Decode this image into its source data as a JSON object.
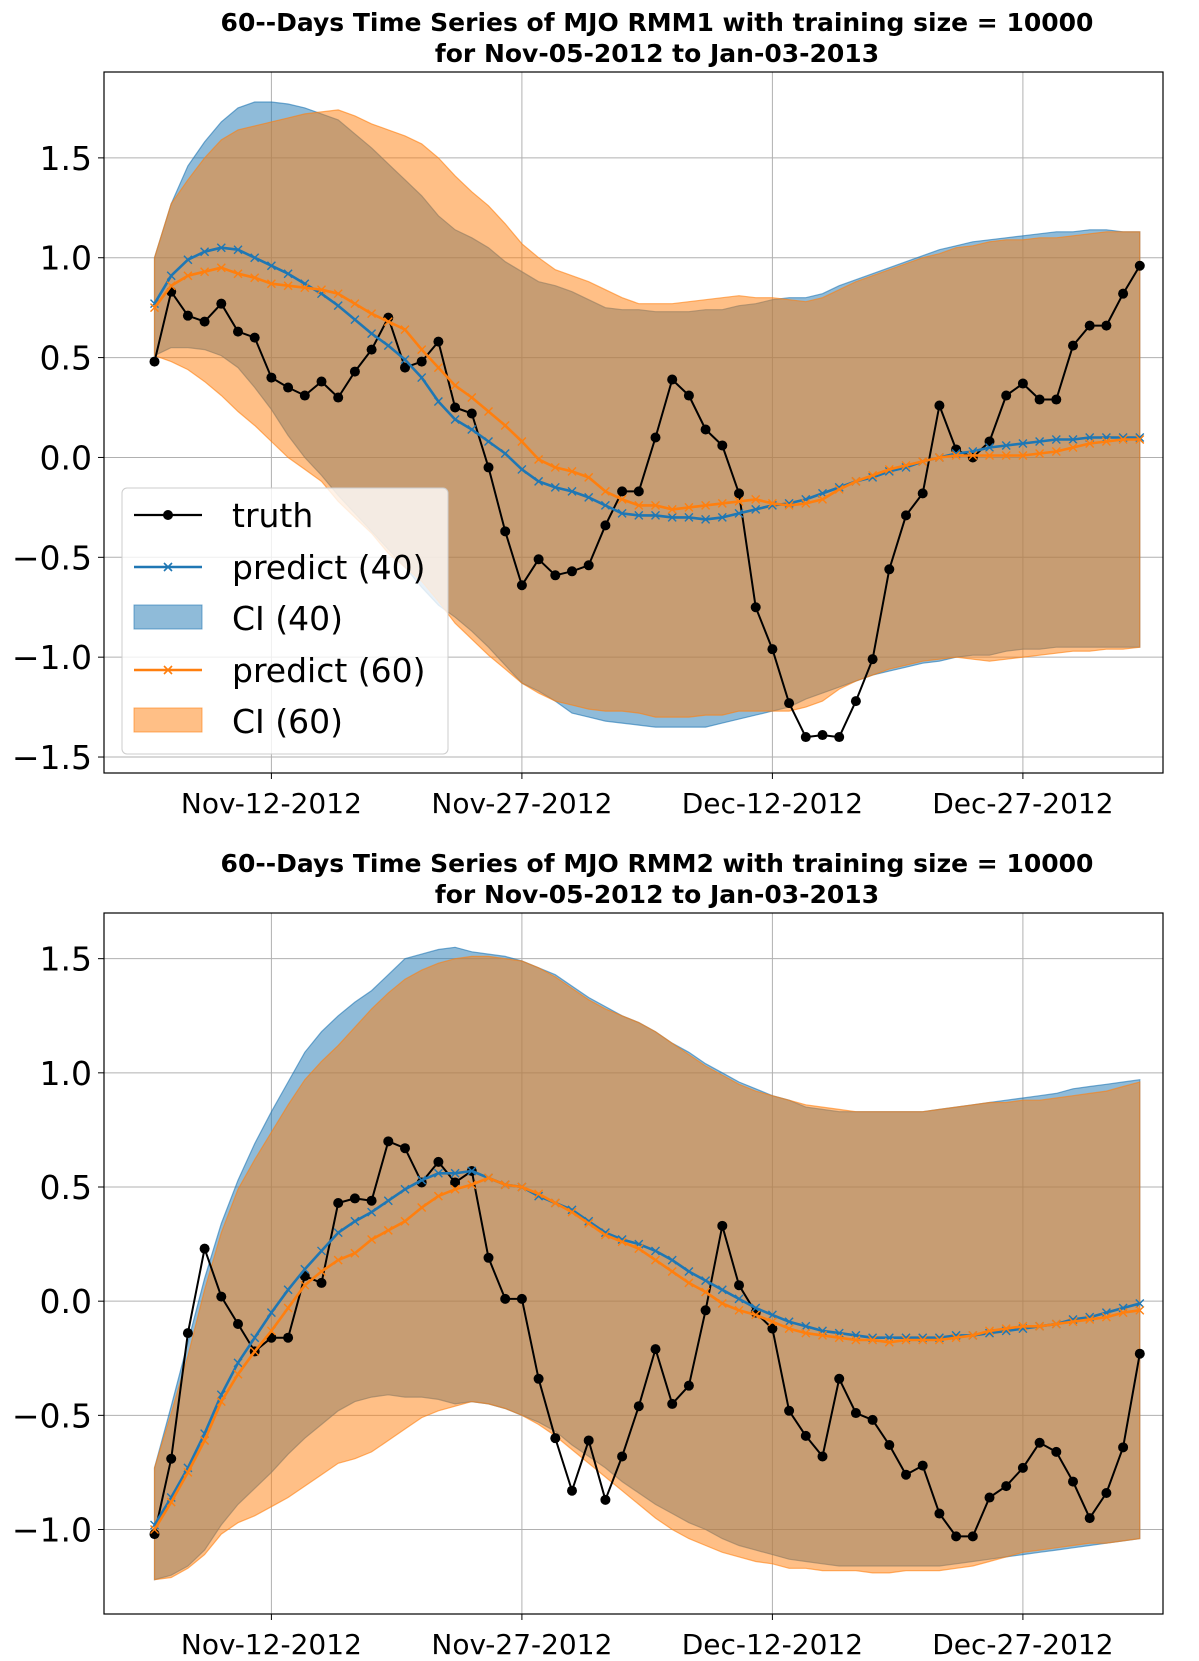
{
  "colors": {
    "truth": "#000000",
    "predict40": "#1f77b4",
    "ci40": "#1f77b4",
    "predict60": "#ff7f0e",
    "ci60": "#ff7f0e"
  },
  "legend": {
    "truth": "truth",
    "predict40": "predict (40)",
    "ci40": "CI (40)",
    "predict60": "predict (60)",
    "ci60": "CI (60)"
  },
  "chart_data": [
    {
      "type": "line",
      "title": "60--Days Time Series of MJO RMM1 with training size = 10000",
      "subtitle": "for Nov-05-2012 to Jan-03-2013",
      "x_start": "2012-11-05",
      "x_ticks": [
        "Nov-12-2012",
        "Nov-27-2012",
        "Dec-12-2012",
        "Dec-27-2012"
      ],
      "y_ticks": [
        "1.5",
        "1.0",
        "0.5",
        "0.0",
        "−0.5",
        "−1.0",
        "−1.5"
      ],
      "ylim": [
        -1.58,
        1.93
      ],
      "grid": true,
      "legend_position": "lower-left",
      "series": [
        {
          "name": "truth",
          "values": [
            0.48,
            0.83,
            0.71,
            0.68,
            0.77,
            0.63,
            0.6,
            0.4,
            0.35,
            0.31,
            0.38,
            0.3,
            0.43,
            0.54,
            0.7,
            0.45,
            0.48,
            0.58,
            0.25,
            0.22,
            -0.05,
            -0.37,
            -0.64,
            -0.51,
            -0.59,
            -0.57,
            -0.54,
            -0.34,
            -0.17,
            -0.17,
            0.1,
            0.39,
            0.31,
            0.14,
            0.06,
            -0.18,
            -0.75,
            -0.96,
            -1.23,
            -1.4,
            -1.39,
            -1.4,
            -1.22,
            -1.01,
            -0.56,
            -0.29,
            -0.18,
            0.26,
            0.04,
            0.0,
            0.08,
            0.31,
            0.37,
            0.29,
            0.29,
            0.56,
            0.66,
            0.66,
            0.82,
            0.96
          ]
        },
        {
          "name": "predict (40)",
          "values": [
            0.77,
            0.91,
            0.99,
            1.03,
            1.05,
            1.04,
            1.0,
            0.96,
            0.92,
            0.87,
            0.82,
            0.76,
            0.69,
            0.62,
            0.56,
            0.49,
            0.4,
            0.28,
            0.19,
            0.14,
            0.08,
            0.02,
            -0.06,
            -0.12,
            -0.15,
            -0.17,
            -0.2,
            -0.24,
            -0.28,
            -0.29,
            -0.29,
            -0.3,
            -0.3,
            -0.31,
            -0.3,
            -0.28,
            -0.26,
            -0.24,
            -0.23,
            -0.21,
            -0.18,
            -0.15,
            -0.12,
            -0.1,
            -0.07,
            -0.05,
            -0.02,
            0.0,
            0.02,
            0.03,
            0.05,
            0.06,
            0.07,
            0.08,
            0.09,
            0.09,
            0.1,
            0.1,
            0.1,
            0.1
          ]
        },
        {
          "name": "CI (40)",
          "upper": [
            1.0,
            1.27,
            1.46,
            1.58,
            1.68,
            1.75,
            1.78,
            1.78,
            1.77,
            1.75,
            1.72,
            1.69,
            1.62,
            1.55,
            1.47,
            1.39,
            1.31,
            1.21,
            1.14,
            1.1,
            1.05,
            0.98,
            0.93,
            0.88,
            0.86,
            0.83,
            0.79,
            0.75,
            0.74,
            0.74,
            0.73,
            0.73,
            0.73,
            0.74,
            0.74,
            0.76,
            0.77,
            0.79,
            0.8,
            0.8,
            0.82,
            0.86,
            0.89,
            0.92,
            0.95,
            0.98,
            1.01,
            1.04,
            1.06,
            1.08,
            1.09,
            1.1,
            1.11,
            1.12,
            1.13,
            1.13,
            1.14,
            1.14,
            1.13,
            1.13
          ],
          "lower": [
            0.51,
            0.55,
            0.55,
            0.54,
            0.51,
            0.45,
            0.35,
            0.24,
            0.11,
            0.0,
            -0.09,
            -0.19,
            -0.28,
            -0.37,
            -0.46,
            -0.55,
            -0.65,
            -0.74,
            -0.8,
            -0.87,
            -0.95,
            -1.04,
            -1.13,
            -1.17,
            -1.22,
            -1.28,
            -1.3,
            -1.32,
            -1.33,
            -1.34,
            -1.35,
            -1.35,
            -1.35,
            -1.35,
            -1.33,
            -1.31,
            -1.29,
            -1.27,
            -1.25,
            -1.21,
            -1.18,
            -1.15,
            -1.12,
            -1.09,
            -1.07,
            -1.05,
            -1.03,
            -1.02,
            -1.0,
            -0.99,
            -0.99,
            -0.97,
            -0.96,
            -0.96,
            -0.95,
            -0.95,
            -0.95,
            -0.95,
            -0.95,
            -0.95
          ]
        },
        {
          "name": "predict (60)",
          "values": [
            0.75,
            0.86,
            0.91,
            0.93,
            0.95,
            0.92,
            0.9,
            0.87,
            0.86,
            0.85,
            0.84,
            0.82,
            0.77,
            0.72,
            0.68,
            0.64,
            0.54,
            0.45,
            0.36,
            0.3,
            0.23,
            0.16,
            0.08,
            -0.01,
            -0.05,
            -0.07,
            -0.1,
            -0.17,
            -0.21,
            -0.24,
            -0.24,
            -0.26,
            -0.25,
            -0.24,
            -0.23,
            -0.22,
            -0.21,
            -0.23,
            -0.24,
            -0.23,
            -0.21,
            -0.16,
            -0.12,
            -0.09,
            -0.06,
            -0.04,
            -0.02,
            0.0,
            0.01,
            0.01,
            0.01,
            0.01,
            0.01,
            0.02,
            0.03,
            0.05,
            0.07,
            0.08,
            0.09,
            0.09
          ]
        },
        {
          "name": "CI (60)",
          "upper": [
            1.0,
            1.27,
            1.39,
            1.5,
            1.59,
            1.64,
            1.66,
            1.68,
            1.7,
            1.72,
            1.73,
            1.74,
            1.71,
            1.67,
            1.64,
            1.61,
            1.57,
            1.5,
            1.41,
            1.33,
            1.26,
            1.17,
            1.07,
            1.0,
            0.94,
            0.91,
            0.88,
            0.84,
            0.8,
            0.77,
            0.77,
            0.77,
            0.78,
            0.79,
            0.8,
            0.81,
            0.8,
            0.8,
            0.79,
            0.78,
            0.8,
            0.84,
            0.88,
            0.91,
            0.94,
            0.97,
            1.0,
            1.02,
            1.05,
            1.06,
            1.08,
            1.09,
            1.09,
            1.1,
            1.1,
            1.11,
            1.12,
            1.13,
            1.13,
            1.13
          ],
          "lower": [
            0.51,
            0.48,
            0.44,
            0.38,
            0.31,
            0.23,
            0.16,
            0.08,
            0.0,
            -0.06,
            -0.12,
            -0.22,
            -0.3,
            -0.38,
            -0.48,
            -0.55,
            -0.62,
            -0.72,
            -0.83,
            -0.91,
            -0.99,
            -1.06,
            -1.13,
            -1.18,
            -1.22,
            -1.24,
            -1.26,
            -1.27,
            -1.27,
            -1.28,
            -1.3,
            -1.3,
            -1.3,
            -1.29,
            -1.29,
            -1.27,
            -1.27,
            -1.27,
            -1.27,
            -1.25,
            -1.22,
            -1.16,
            -1.12,
            -1.09,
            -1.06,
            -1.04,
            -1.02,
            -1.01,
            -1.0,
            -1.01,
            -1.02,
            -1.01,
            -1.0,
            -0.99,
            -0.98,
            -0.97,
            -0.97,
            -0.96,
            -0.96,
            -0.95
          ]
        }
      ]
    },
    {
      "type": "line",
      "title": "60--Days Time Series of MJO RMM2 with training size = 10000",
      "subtitle": "for Nov-05-2012 to Jan-03-2013",
      "x_start": "2012-11-05",
      "x_ticks": [
        "Nov-12-2012",
        "Nov-27-2012",
        "Dec-12-2012",
        "Dec-27-2012"
      ],
      "y_ticks": [
        "1.5",
        "1.0",
        "0.5",
        "0.0",
        "−0.5",
        "−1.0"
      ],
      "ylim": [
        -1.37,
        1.7
      ],
      "grid": true,
      "series": [
        {
          "name": "truth",
          "values": [
            -1.02,
            -0.69,
            -0.14,
            0.23,
            0.02,
            -0.1,
            -0.22,
            -0.16,
            -0.16,
            0.11,
            0.08,
            0.43,
            0.45,
            0.44,
            0.7,
            0.67,
            0.52,
            0.61,
            0.52,
            0.57,
            0.19,
            0.01,
            0.01,
            -0.34,
            -0.6,
            -0.83,
            -0.61,
            -0.87,
            -0.68,
            -0.46,
            -0.21,
            -0.45,
            -0.37,
            -0.04,
            0.33,
            0.07,
            -0.05,
            -0.12,
            -0.48,
            -0.59,
            -0.68,
            -0.34,
            -0.49,
            -0.52,
            -0.63,
            -0.76,
            -0.72,
            -0.93,
            -1.03,
            -1.03,
            -0.86,
            -0.81,
            -0.73,
            -0.62,
            -0.66,
            -0.79,
            -0.95,
            -0.84,
            -0.64,
            -0.23
          ]
        },
        {
          "name": "predict (40)",
          "values": [
            -0.98,
            -0.86,
            -0.73,
            -0.58,
            -0.41,
            -0.27,
            -0.16,
            -0.05,
            0.05,
            0.14,
            0.22,
            0.3,
            0.35,
            0.39,
            0.44,
            0.49,
            0.53,
            0.56,
            0.56,
            0.57,
            0.54,
            0.51,
            0.5,
            0.46,
            0.43,
            0.4,
            0.35,
            0.3,
            0.27,
            0.25,
            0.22,
            0.18,
            0.13,
            0.09,
            0.05,
            0.01,
            -0.03,
            -0.06,
            -0.09,
            -0.11,
            -0.13,
            -0.14,
            -0.15,
            -0.16,
            -0.16,
            -0.16,
            -0.16,
            -0.16,
            -0.15,
            -0.15,
            -0.14,
            -0.13,
            -0.12,
            -0.11,
            -0.1,
            -0.08,
            -0.07,
            -0.05,
            -0.03,
            -0.01
          ]
        },
        {
          "name": "CI (40)",
          "upper": [
            -0.73,
            -0.46,
            -0.18,
            0.1,
            0.34,
            0.53,
            0.69,
            0.83,
            0.96,
            1.09,
            1.18,
            1.25,
            1.31,
            1.36,
            1.43,
            1.5,
            1.52,
            1.54,
            1.55,
            1.53,
            1.52,
            1.51,
            1.49,
            1.46,
            1.43,
            1.38,
            1.33,
            1.29,
            1.25,
            1.22,
            1.18,
            1.13,
            1.09,
            1.04,
            1.0,
            0.96,
            0.93,
            0.9,
            0.88,
            0.85,
            0.84,
            0.83,
            0.83,
            0.83,
            0.83,
            0.83,
            0.83,
            0.84,
            0.85,
            0.86,
            0.87,
            0.88,
            0.89,
            0.9,
            0.91,
            0.93,
            0.94,
            0.95,
            0.96,
            0.97
          ],
          "lower": [
            -1.22,
            -1.2,
            -1.16,
            -1.09,
            -0.98,
            -0.89,
            -0.82,
            -0.75,
            -0.67,
            -0.6,
            -0.54,
            -0.48,
            -0.44,
            -0.42,
            -0.41,
            -0.42,
            -0.42,
            -0.43,
            -0.45,
            -0.44,
            -0.45,
            -0.47,
            -0.5,
            -0.53,
            -0.57,
            -0.63,
            -0.68,
            -0.73,
            -0.79,
            -0.84,
            -0.89,
            -0.93,
            -0.97,
            -1.0,
            -1.04,
            -1.07,
            -1.09,
            -1.11,
            -1.13,
            -1.14,
            -1.15,
            -1.16,
            -1.16,
            -1.16,
            -1.16,
            -1.16,
            -1.16,
            -1.16,
            -1.15,
            -1.14,
            -1.13,
            -1.12,
            -1.11,
            -1.1,
            -1.09,
            -1.08,
            -1.07,
            -1.06,
            -1.05,
            -1.04
          ]
        },
        {
          "name": "predict (60)",
          "values": [
            -1.0,
            -0.88,
            -0.75,
            -0.61,
            -0.44,
            -0.32,
            -0.22,
            -0.13,
            -0.03,
            0.07,
            0.13,
            0.18,
            0.21,
            0.27,
            0.31,
            0.35,
            0.41,
            0.46,
            0.49,
            0.51,
            0.54,
            0.51,
            0.5,
            0.47,
            0.43,
            0.39,
            0.34,
            0.29,
            0.26,
            0.23,
            0.18,
            0.13,
            0.08,
            0.04,
            -0.01,
            -0.04,
            -0.06,
            -0.09,
            -0.12,
            -0.14,
            -0.15,
            -0.16,
            -0.17,
            -0.17,
            -0.18,
            -0.17,
            -0.17,
            -0.17,
            -0.16,
            -0.15,
            -0.13,
            -0.12,
            -0.11,
            -0.11,
            -0.1,
            -0.09,
            -0.08,
            -0.07,
            -0.05,
            -0.04
          ]
        },
        {
          "name": "CI (60)",
          "upper": [
            -0.73,
            -0.49,
            -0.24,
            0.05,
            0.3,
            0.49,
            0.62,
            0.74,
            0.86,
            0.97,
            1.05,
            1.12,
            1.2,
            1.28,
            1.35,
            1.41,
            1.45,
            1.48,
            1.5,
            1.51,
            1.51,
            1.5,
            1.49,
            1.46,
            1.42,
            1.37,
            1.32,
            1.28,
            1.25,
            1.22,
            1.18,
            1.13,
            1.08,
            1.03,
            0.99,
            0.95,
            0.92,
            0.9,
            0.88,
            0.86,
            0.85,
            0.84,
            0.83,
            0.83,
            0.83,
            0.83,
            0.83,
            0.84,
            0.85,
            0.86,
            0.87,
            0.87,
            0.88,
            0.88,
            0.89,
            0.9,
            0.91,
            0.92,
            0.94,
            0.96
          ],
          "lower": [
            -1.22,
            -1.21,
            -1.17,
            -1.11,
            -1.02,
            -0.97,
            -0.94,
            -0.9,
            -0.86,
            -0.81,
            -0.76,
            -0.71,
            -0.69,
            -0.66,
            -0.61,
            -0.56,
            -0.51,
            -0.48,
            -0.46,
            -0.44,
            -0.45,
            -0.47,
            -0.5,
            -0.54,
            -0.59,
            -0.65,
            -0.71,
            -0.77,
            -0.83,
            -0.89,
            -0.95,
            -1.0,
            -1.04,
            -1.07,
            -1.1,
            -1.12,
            -1.14,
            -1.15,
            -1.17,
            -1.17,
            -1.18,
            -1.18,
            -1.18,
            -1.19,
            -1.19,
            -1.18,
            -1.18,
            -1.18,
            -1.17,
            -1.16,
            -1.14,
            -1.12,
            -1.1,
            -1.09,
            -1.08,
            -1.07,
            -1.06,
            -1.06,
            -1.05,
            -1.04
          ]
        }
      ]
    }
  ]
}
